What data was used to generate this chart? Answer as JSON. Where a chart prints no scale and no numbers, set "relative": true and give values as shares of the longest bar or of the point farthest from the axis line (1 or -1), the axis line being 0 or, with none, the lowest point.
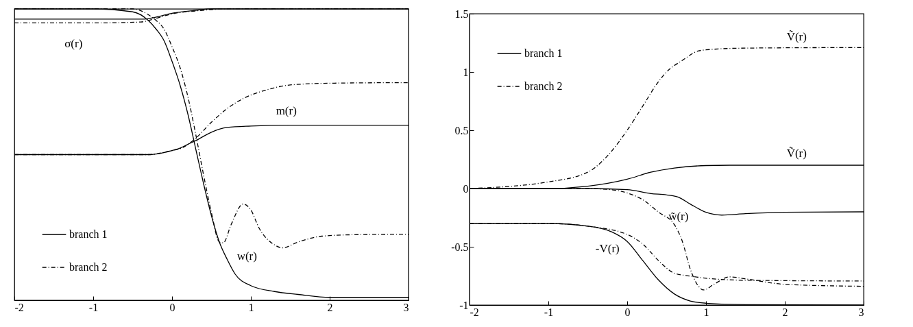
{
  "chart_data": [
    {
      "type": "line",
      "relative": true,
      "xlim": [
        -2,
        3
      ],
      "xticks": [
        -2,
        -1,
        0,
        1,
        2,
        3
      ],
      "legend": "bottom left",
      "grid": false,
      "series": [
        {
          "name": "branch 1",
          "color": "#000000",
          "line_style": "solid",
          "x": [
            -2,
            -1,
            -0.5,
            -0.3,
            -0.2,
            -0.1,
            0,
            0.1,
            0.2,
            0.3,
            0.4,
            0.5,
            0.6,
            0.7,
            0.8,
            1,
            1.3,
            1.6,
            2,
            3
          ],
          "values": [
            1.0,
            1.0,
            0.99,
            0.96,
            0.93,
            0.89,
            0.82,
            0.74,
            0.64,
            0.52,
            0.4,
            0.29,
            0.2,
            0.14,
            0.09,
            0.05,
            0.03,
            0.02,
            0.01,
            0.01
          ]
        },
        {
          "color": "#000000",
          "line_style": "solid",
          "x": [
            -2,
            -1,
            -0.35,
            -0.2,
            0,
            0.3,
            0.5,
            1,
            3
          ],
          "values": [
            0.965,
            0.965,
            0.965,
            0.972,
            0.985,
            0.995,
            1.0,
            1.0,
            1.0
          ]
        },
        {
          "color": "#000000",
          "line_style": "solid",
          "x": [
            -2,
            -1,
            -0.3,
            -0.2,
            0,
            0.1,
            0.2,
            0.3,
            0.5,
            0.7,
            1,
            1.5,
            3
          ],
          "values": [
            0.5,
            0.5,
            0.5,
            0.502,
            0.514,
            0.522,
            0.535,
            0.548,
            0.577,
            0.593,
            0.598,
            0.601,
            0.601
          ]
        },
        {
          "name": "branch 2",
          "color": "#000000",
          "line_style": "dashdot",
          "x": [
            -2,
            -1,
            -0.5,
            -0.3,
            -0.2,
            -0.1,
            0,
            0.1,
            0.2,
            0.3,
            0.4,
            0.5,
            0.6,
            0.65,
            0.75,
            0.9,
            1.0,
            1.1,
            1.3,
            1.4,
            1.6,
            1.9,
            2.3,
            3
          ],
          "values": [
            1.0,
            1.0,
            1.0,
            0.98,
            0.96,
            0.93,
            0.87,
            0.8,
            0.7,
            0.57,
            0.43,
            0.3,
            0.2,
            0.197,
            0.26,
            0.33,
            0.31,
            0.25,
            0.19,
            0.18,
            0.2,
            0.22,
            0.225,
            0.227
          ]
        },
        {
          "color": "#000000",
          "line_style": "dashdot",
          "x": [
            -2,
            -1,
            -0.4,
            -0.2,
            0,
            0.3,
            0.6,
            1,
            3
          ],
          "values": [
            0.952,
            0.952,
            0.955,
            0.968,
            0.983,
            0.993,
            0.999,
            1.0,
            1.0
          ]
        },
        {
          "color": "#000000",
          "line_style": "dashdot",
          "x": [
            -2,
            -1,
            -0.3,
            0,
            0.1,
            0.3,
            0.5,
            0.7,
            0.9,
            1.2,
            1.5,
            2,
            3
          ],
          "values": [
            0.5,
            0.5,
            0.5,
            0.514,
            0.52,
            0.556,
            0.611,
            0.658,
            0.692,
            0.722,
            0.739,
            0.745,
            0.747
          ]
        }
      ],
      "annotations": [
        "σ(r)",
        "m(r)",
        "w(r)"
      ]
    },
    {
      "type": "line",
      "xlim": [
        -2,
        3
      ],
      "xticks": [
        -2,
        -1,
        0,
        1,
        2,
        3
      ],
      "ylim": [
        -1,
        1.5
      ],
      "yticks": [
        -1,
        -0.5,
        0,
        0.5,
        1,
        1.5
      ],
      "legend": "top left",
      "grid": false,
      "series": [
        {
          "color": "#000000",
          "line_style": "dashdot",
          "x": [
            -2,
            -1,
            -0.5,
            -0.25,
            0,
            0.2,
            0.4,
            0.5,
            0.7,
            0.9,
            1,
            1.5,
            3
          ],
          "values": [
            0,
            0.057,
            0.14,
            0.28,
            0.5,
            0.71,
            0.92,
            1.0,
            1.1,
            1.18,
            1.19,
            1.205,
            1.21
          ]
        },
        {
          "name": "branch 1",
          "color": "#000000",
          "line_style": "solid",
          "x": [
            -2,
            -1,
            -0.5,
            0,
            0.3,
            0.6,
            1,
            1.3,
            3
          ],
          "values": [
            0,
            0,
            0.02,
            0.08,
            0.14,
            0.176,
            0.197,
            0.2,
            0.2
          ]
        },
        {
          "color": "#000000",
          "line_style": "solid",
          "x": [
            -2,
            -0.5,
            0,
            0.3,
            0.5,
            0.65,
            0.8,
            1,
            1.2,
            1.5,
            2,
            3
          ],
          "values": [
            0,
            0,
            -0.01,
            -0.043,
            -0.055,
            -0.074,
            -0.133,
            -0.204,
            -0.228,
            -0.216,
            -0.204,
            -0.2
          ]
        },
        {
          "name": "branch 2",
          "color": "#000000",
          "line_style": "dashdot",
          "x": [
            -2,
            -0.5,
            -0.25,
            0,
            0.2,
            0.4,
            0.6,
            0.7,
            0.8,
            0.9,
            0.97,
            1.1,
            1.3,
            1.5,
            2,
            3
          ],
          "values": [
            0,
            0,
            -0.007,
            -0.038,
            -0.097,
            -0.204,
            -0.311,
            -0.454,
            -0.69,
            -0.834,
            -0.87,
            -0.822,
            -0.758,
            -0.775,
            -0.822,
            -0.839
          ]
        },
        {
          "color": "#000000",
          "line_style": "dashdot",
          "x": [
            -2,
            -1,
            -0.5,
            0,
            0.2,
            0.4,
            0.6,
            0.8,
            1,
            1.5,
            3
          ],
          "values": [
            -0.3,
            -0.3,
            -0.323,
            -0.394,
            -0.478,
            -0.62,
            -0.727,
            -0.751,
            -0.77,
            -0.787,
            -0.794
          ]
        },
        {
          "color": "#000000",
          "line_style": "solid",
          "x": [
            -2,
            -1,
            -0.5,
            -0.2,
            0,
            0.2,
            0.4,
            0.6,
            0.8,
            1,
            1.5,
            3
          ],
          "values": [
            -0.3,
            -0.3,
            -0.323,
            -0.371,
            -0.454,
            -0.62,
            -0.787,
            -0.905,
            -0.965,
            -0.984,
            -0.996,
            -1.0
          ]
        }
      ],
      "annotations": [
        "Ṽ(r)",
        "Ṽ(r)",
        "w̃(r)",
        "-V(r)"
      ]
    }
  ]
}
